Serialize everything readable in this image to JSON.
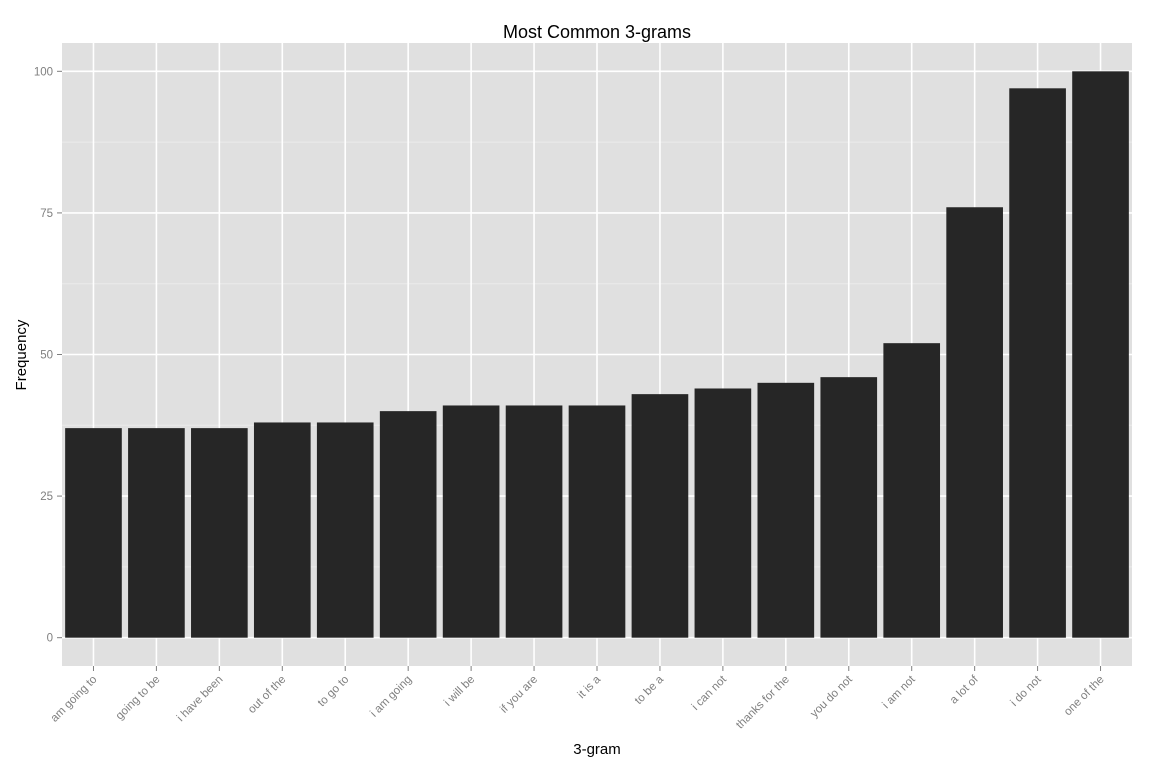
{
  "chart_data": {
    "type": "bar",
    "title": "Most Common 3-grams",
    "xlabel": "3-gram",
    "ylabel": "Frequency",
    "categories": [
      "am going to",
      "going to be",
      "i have been",
      "out of the",
      "to go to",
      "i am going",
      "i will be",
      "if you are",
      "it is a",
      "to be a",
      "i can not",
      "thanks for the",
      "you do not",
      "i am not",
      "a lot of",
      "i do not",
      "one of the"
    ],
    "values": [
      37,
      37,
      37,
      38,
      38,
      40,
      41,
      41,
      41,
      43,
      44,
      45,
      46,
      52,
      76,
      97,
      100
    ],
    "ylim": [
      -5,
      105
    ],
    "yticks": [
      0,
      25,
      50,
      75,
      100
    ],
    "grid": true,
    "legend": "none",
    "colors": {
      "bar": "#262626",
      "panel": "#e0e0e0",
      "grid_major": "#ffffff",
      "grid_minor": "#ebebeb",
      "tick_text": "#7f7f7f"
    }
  }
}
